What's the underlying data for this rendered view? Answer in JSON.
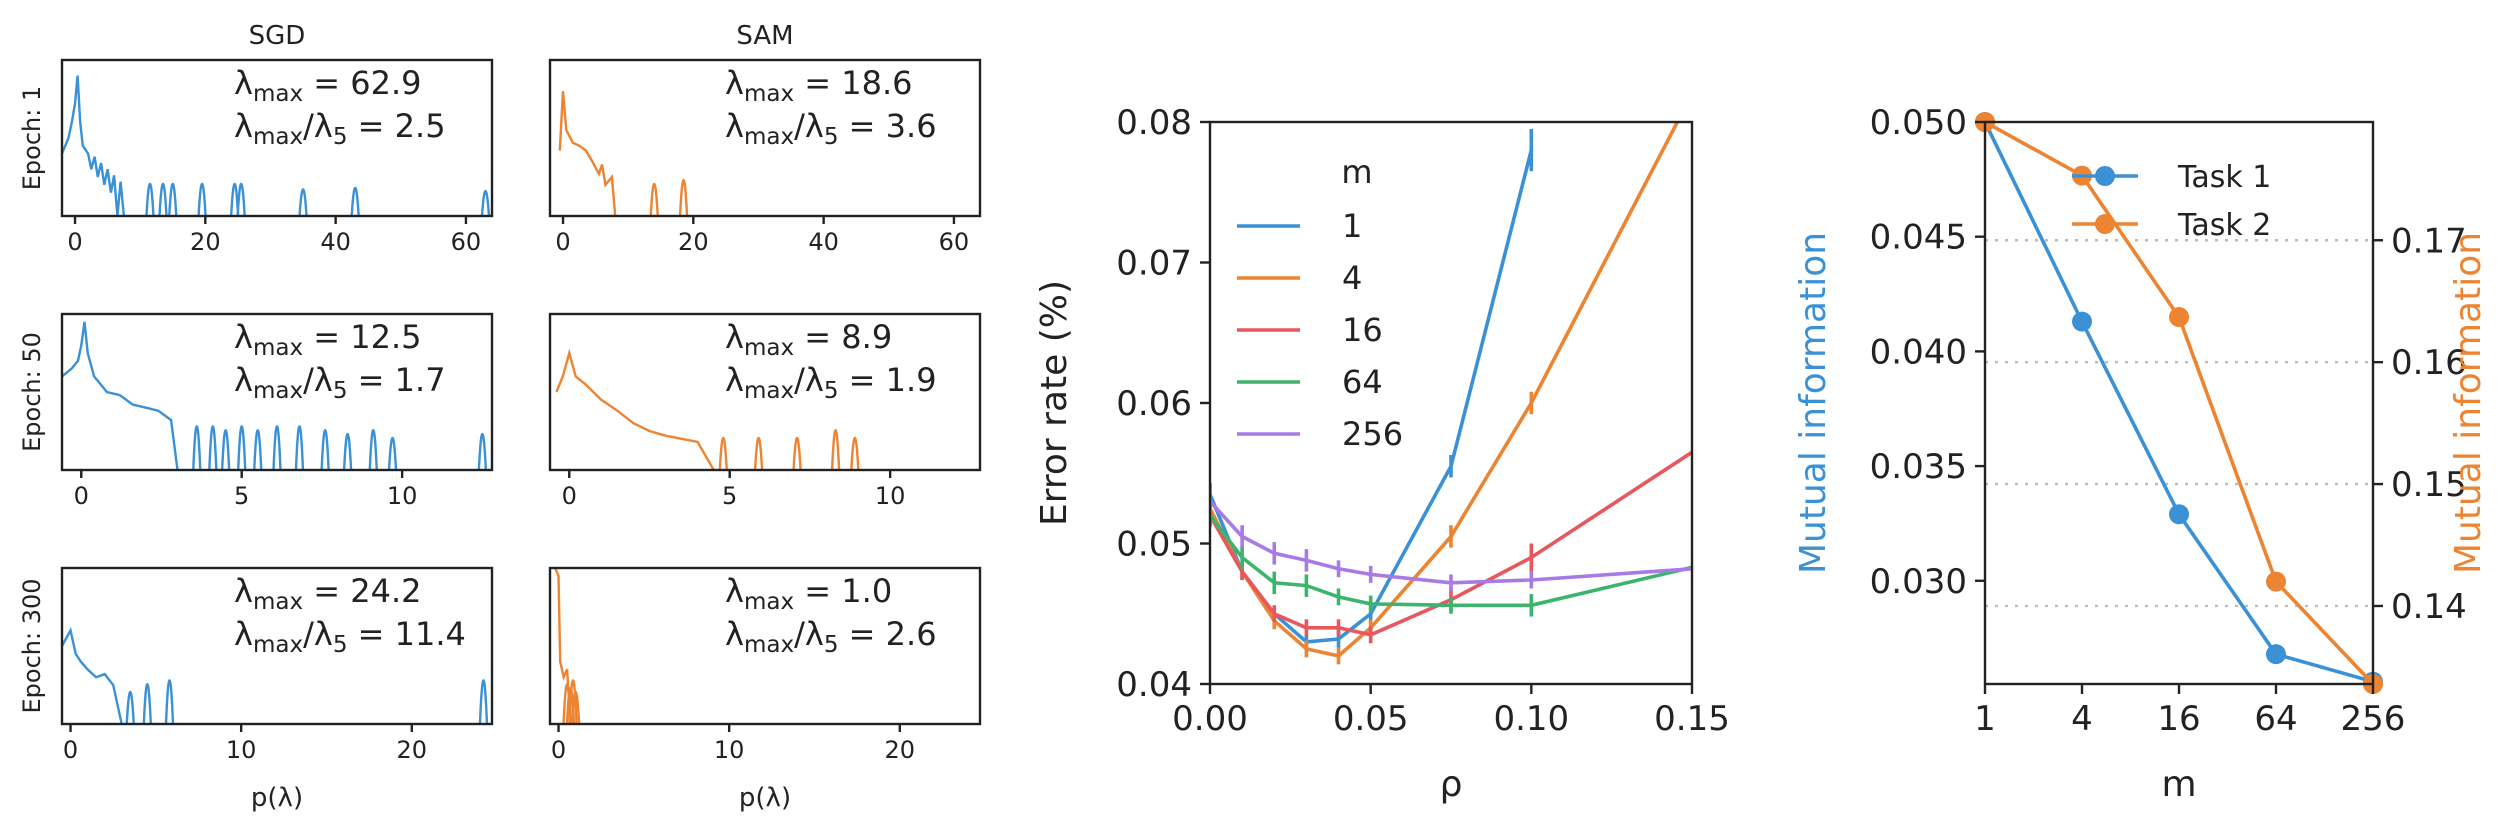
{
  "colors": {
    "blue": "#3a91d6",
    "orange": "#ec8432",
    "red": "#e8575b",
    "green": "#3cb46e",
    "purple": "#a77ae6"
  },
  "spectra": {
    "columns": [
      "SGD",
      "SAM"
    ],
    "xlabel": "p(λ)",
    "rows": [
      {
        "label": "Epoch: 1",
        "xticks": [
          0,
          20,
          40,
          60
        ],
        "xlim": [
          -2,
          64
        ],
        "panels": [
          {
            "name": "SGD",
            "color": "blue",
            "lmax": "62.9",
            "ratio": "2.5",
            "continuous": [
              [
                -2,
                0.4
              ],
              [
                -1,
                0.5
              ],
              [
                -0.5,
                0.6
              ],
              [
                0,
                0.72
              ],
              [
                0.4,
                0.9
              ],
              [
                0.8,
                0.6
              ],
              [
                1.2,
                0.45
              ],
              [
                2,
                0.4
              ],
              [
                2.5,
                0.3
              ],
              [
                3,
                0.38
              ],
              [
                3.5,
                0.25
              ],
              [
                4,
                0.34
              ],
              [
                4.5,
                0.2
              ],
              [
                5,
                0.3
              ],
              [
                5.5,
                0.15
              ],
              [
                6,
                0.26
              ],
              [
                6.5,
                0
              ],
              [
                7,
                0.22
              ],
              [
                7.5,
                0
              ]
            ],
            "spikes": [
              [
                11.5,
                0.25
              ],
              [
                13.5,
                0.25
              ],
              [
                15,
                0.25
              ],
              [
                19.5,
                0.25
              ],
              [
                24.5,
                0.25
              ],
              [
                25.5,
                0.25
              ],
              [
                35,
                0.18
              ],
              [
                43,
                0.2
              ],
              [
                63,
                0.16
              ]
            ]
          },
          {
            "name": "SAM",
            "color": "orange",
            "lmax": "18.6",
            "ratio": "3.6",
            "continuous": [
              [
                -0.5,
                0.42
              ],
              [
                0,
                0.8
              ],
              [
                0.5,
                0.55
              ],
              [
                1.5,
                0.47
              ],
              [
                2.5,
                0.45
              ],
              [
                3.5,
                0.42
              ],
              [
                4.5,
                0.35
              ],
              [
                5.5,
                0.27
              ],
              [
                6,
                0.33
              ],
              [
                6.5,
                0.2
              ],
              [
                7.5,
                0.25
              ],
              [
                8,
                0
              ]
            ],
            "spikes": [
              [
                14,
                0.25
              ],
              [
                18.5,
                0.3
              ]
            ]
          }
        ]
      },
      {
        "label": "Epoch: 50",
        "xticks": [
          0,
          5,
          10
        ],
        "xlim": [
          -0.6,
          12.8
        ],
        "panels": [
          {
            "name": "SGD",
            "color": "blue",
            "lmax": "12.5",
            "ratio": "1.7",
            "continuous": [
              [
                -0.6,
                0.6
              ],
              [
                -0.3,
                0.65
              ],
              [
                -0.1,
                0.7
              ],
              [
                0,
                0.8
              ],
              [
                0.1,
                0.95
              ],
              [
                0.2,
                0.75
              ],
              [
                0.4,
                0.6
              ],
              [
                0.8,
                0.5
              ],
              [
                1.2,
                0.48
              ],
              [
                1.6,
                0.42
              ],
              [
                2,
                0.4
              ],
              [
                2.4,
                0.38
              ],
              [
                2.8,
                0.32
              ],
              [
                3,
                0
              ]
            ],
            "spikes": [
              [
                3.6,
                0.4
              ],
              [
                4.1,
                0.4
              ],
              [
                4.5,
                0.35
              ],
              [
                5,
                0.4
              ],
              [
                5.5,
                0.35
              ],
              [
                6.1,
                0.4
              ],
              [
                6.8,
                0.4
              ],
              [
                7.6,
                0.35
              ],
              [
                8.3,
                0.3
              ],
              [
                9.1,
                0.35
              ],
              [
                9.7,
                0.25
              ],
              [
                12.5,
                0.3
              ]
            ]
          },
          {
            "name": "SAM",
            "color": "orange",
            "lmax": "8.9",
            "ratio": "1.9",
            "continuous": [
              [
                -0.4,
                0.5
              ],
              [
                -0.2,
                0.6
              ],
              [
                0,
                0.75
              ],
              [
                0.2,
                0.6
              ],
              [
                0.5,
                0.55
              ],
              [
                1,
                0.45
              ],
              [
                1.5,
                0.38
              ],
              [
                2,
                0.3
              ],
              [
                2.5,
                0.25
              ],
              [
                3,
                0.22
              ],
              [
                3.5,
                0.2
              ],
              [
                4,
                0.18
              ],
              [
                4.5,
                0
              ]
            ],
            "spikes": [
              [
                4.8,
                0.25
              ],
              [
                5.9,
                0.25
              ],
              [
                7.1,
                0.25
              ],
              [
                8.3,
                0.35
              ],
              [
                8.9,
                0.25
              ]
            ]
          }
        ]
      },
      {
        "label": "Epoch: 300",
        "xticks": [
          0,
          10,
          20
        ],
        "xlim": [
          -0.5,
          24.7
        ],
        "panels": [
          {
            "name": "SGD",
            "color": "blue",
            "lmax": "24.2",
            "ratio": "11.4",
            "continuous": [
              [
                -0.5,
                0.5
              ],
              [
                0,
                0.6
              ],
              [
                0.3,
                0.45
              ],
              [
                0.6,
                0.4
              ],
              [
                1,
                0.35
              ],
              [
                1.5,
                0.3
              ],
              [
                2,
                0.32
              ],
              [
                2.5,
                0.25
              ],
              [
                3,
                0
              ]
            ],
            "spikes": [
              [
                3.5,
                0.25
              ],
              [
                4.5,
                0.35
              ],
              [
                5.8,
                0.4
              ],
              [
                24.2,
                0.4
              ]
            ]
          },
          {
            "name": "SAM",
            "color": "orange",
            "lmax": "1.0",
            "ratio": "2.6",
            "continuous": [
              [
                -0.2,
                1.0
              ],
              [
                0,
                0.95
              ],
              [
                0.1,
                0.4
              ],
              [
                0.3,
                0.3
              ],
              [
                0.5,
                0.35
              ],
              [
                0.7,
                0
              ]
            ],
            "spikes": [
              [
                0.5,
                0.35
              ],
              [
                0.7,
                0.3
              ],
              [
                0.85,
                0.4
              ],
              [
                1.0,
                0.25
              ]
            ]
          }
        ]
      }
    ]
  },
  "chart_data": [
    {
      "type": "line",
      "xlabel": "ρ",
      "ylabel": "Error rate (%)",
      "xlim": [
        0,
        0.15
      ],
      "ylim": [
        0.04,
        0.08
      ],
      "xticks": [
        "0.00",
        "0.05",
        "0.10",
        "0.15"
      ],
      "yticks": [
        "0.04",
        "0.05",
        "0.06",
        "0.07",
        "0.08"
      ],
      "legend_title": "m",
      "legend_position": "upper-left",
      "x": [
        0,
        0.01,
        0.02,
        0.03,
        0.04,
        0.05,
        0.075,
        0.1,
        0.15
      ],
      "series": [
        {
          "name": "1",
          "color": "blue",
          "values": [
            0.0535,
            0.048,
            0.045,
            0.043,
            0.0432,
            0.045,
            0.0555,
            0.078,
            null
          ],
          "errors": [
            0.0008,
            0.0006,
            0.0006,
            0.0005,
            0.0006,
            0.0006,
            0.0008,
            0.0015,
            null
          ]
        },
        {
          "name": "4",
          "color": "orange",
          "values": [
            0.0525,
            0.048,
            0.0445,
            0.0425,
            0.042,
            0.044,
            0.0505,
            0.06,
            0.082
          ],
          "errors": [
            0.0008,
            0.0006,
            0.0006,
            0.0006,
            0.0006,
            0.0006,
            0.0008,
            0.0008,
            null
          ]
        },
        {
          "name": "16",
          "color": "red",
          "values": [
            0.052,
            0.048,
            0.045,
            0.044,
            0.044,
            0.0435,
            0.046,
            0.049,
            0.0565
          ],
          "errors": [
            0.0008,
            0.0006,
            0.0006,
            0.0006,
            0.0006,
            0.0006,
            0.0008,
            0.001,
            null
          ]
        },
        {
          "name": "64",
          "color": "green",
          "values": [
            0.052,
            0.049,
            0.0472,
            0.047,
            0.0462,
            0.0457,
            0.0456,
            0.0456,
            0.0483
          ],
          "errors": [
            0.0008,
            0.0008,
            0.0008,
            0.0008,
            0.0006,
            0.0006,
            0.0006,
            0.0008,
            null
          ]
        },
        {
          "name": "256",
          "color": "purple",
          "values": [
            0.053,
            0.0505,
            0.0493,
            0.0488,
            0.0482,
            0.0478,
            0.0472,
            0.0474,
            0.0482
          ],
          "errors": [
            0.0008,
            0.0008,
            0.0008,
            0.0008,
            0.0006,
            0.0006,
            0.0006,
            0.0006,
            null
          ]
        }
      ]
    },
    {
      "type": "line",
      "xlabel": "m",
      "ylabel_left": "Mutual information",
      "ylabel_right": "Mutual information",
      "xscale": "log2",
      "xticks": [
        "1",
        "4",
        "16",
        "64",
        "256"
      ],
      "ylim_left": [
        0.0255,
        0.05
      ],
      "ylim_right": [
        0.1336,
        0.1797
      ],
      "yticks_left": [
        "0.030",
        "0.035",
        "0.040",
        "0.045",
        "0.050"
      ],
      "yticks_right": [
        "0.14",
        "0.15",
        "0.16",
        "0.17"
      ],
      "grid": "dotted horizontal at right-axis ticks",
      "legend_position": "upper-right",
      "x": [
        1,
        4,
        16,
        64,
        256
      ],
      "series": [
        {
          "name": "Task 1",
          "color": "blue",
          "axis": "left",
          "values": [
            0.05,
            0.0413,
            0.0329,
            0.0268,
            0.0256
          ]
        },
        {
          "name": "Task 2",
          "color": "orange",
          "axis": "right",
          "values": [
            0.1797,
            0.1753,
            0.1637,
            0.142,
            0.1336
          ]
        }
      ]
    }
  ]
}
